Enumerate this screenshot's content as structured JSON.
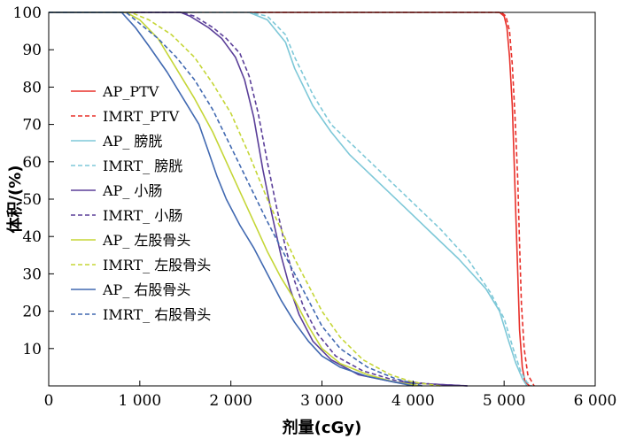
{
  "chart_data": {
    "type": "line",
    "title": "",
    "xlabel": "剂量(cGy)",
    "ylabel": "体积/(%)",
    "xlim": [
      0,
      6000
    ],
    "ylim": [
      0,
      100
    ],
    "x_ticks": [
      0,
      1000,
      2000,
      3000,
      4000,
      5000,
      6000
    ],
    "x_tick_labels": [
      "0",
      "1 000",
      "2 000",
      "3 000",
      "4 000",
      "5 000",
      "6 000"
    ],
    "y_ticks": [
      10,
      20,
      30,
      40,
      50,
      60,
      70,
      80,
      90,
      100
    ],
    "y_tick_labels": [
      "10",
      "20",
      "30",
      "40",
      "50",
      "60",
      "70",
      "80",
      "90",
      "100"
    ],
    "grid": false,
    "legend_position": "left",
    "series": [
      {
        "name": "AP_PTV",
        "color": "#e8302a",
        "dash": "solid",
        "points": [
          [
            0,
            100
          ],
          [
            4950,
            100
          ],
          [
            5000,
            99
          ],
          [
            5030,
            96
          ],
          [
            5060,
            88
          ],
          [
            5090,
            75
          ],
          [
            5110,
            60
          ],
          [
            5130,
            45
          ],
          [
            5150,
            30
          ],
          [
            5170,
            15
          ],
          [
            5200,
            5
          ],
          [
            5230,
            1
          ],
          [
            5280,
            0
          ]
        ]
      },
      {
        "name": "IMRT_PTV",
        "color": "#e8302a",
        "dash": "dashed",
        "points": [
          [
            0,
            100
          ],
          [
            4970,
            100
          ],
          [
            5020,
            99
          ],
          [
            5060,
            95
          ],
          [
            5090,
            86
          ],
          [
            5120,
            72
          ],
          [
            5150,
            55
          ],
          [
            5170,
            38
          ],
          [
            5190,
            22
          ],
          [
            5220,
            10
          ],
          [
            5260,
            3
          ],
          [
            5330,
            0
          ]
        ]
      },
      {
        "name": "AP_ 膀胱",
        "color": "#7ec8d8",
        "dash": "solid",
        "points": [
          [
            0,
            100
          ],
          [
            2200,
            100
          ],
          [
            2400,
            98
          ],
          [
            2600,
            92
          ],
          [
            2700,
            85
          ],
          [
            2900,
            75
          ],
          [
            3100,
            68
          ],
          [
            3300,
            62
          ],
          [
            3600,
            55
          ],
          [
            3900,
            48
          ],
          [
            4200,
            41
          ],
          [
            4500,
            34
          ],
          [
            4800,
            26
          ],
          [
            4950,
            20
          ],
          [
            5050,
            12
          ],
          [
            5130,
            6
          ],
          [
            5200,
            2
          ],
          [
            5250,
            0
          ]
        ]
      },
      {
        "name": "IMRT_ 膀胱",
        "color": "#7ec8d8",
        "dash": "dashed",
        "points": [
          [
            0,
            100
          ],
          [
            2200,
            100
          ],
          [
            2400,
            99
          ],
          [
            2600,
            94
          ],
          [
            2700,
            88
          ],
          [
            2900,
            78
          ],
          [
            3100,
            70
          ],
          [
            3400,
            63
          ],
          [
            3700,
            56
          ],
          [
            4000,
            49
          ],
          [
            4300,
            42
          ],
          [
            4600,
            34
          ],
          [
            4850,
            25
          ],
          [
            5000,
            18
          ],
          [
            5100,
            10
          ],
          [
            5180,
            4
          ],
          [
            5250,
            1
          ],
          [
            5300,
            0
          ]
        ]
      },
      {
        "name": "AP_ 小肠",
        "color": "#5b3f99",
        "dash": "solid",
        "points": [
          [
            0,
            100
          ],
          [
            1450,
            100
          ],
          [
            1550,
            99
          ],
          [
            1750,
            96
          ],
          [
            1900,
            93
          ],
          [
            2050,
            88
          ],
          [
            2150,
            82
          ],
          [
            2250,
            72
          ],
          [
            2350,
            58
          ],
          [
            2450,
            46
          ],
          [
            2550,
            35
          ],
          [
            2650,
            26
          ],
          [
            2750,
            19
          ],
          [
            2900,
            12
          ],
          [
            3100,
            7
          ],
          [
            3400,
            3
          ],
          [
            3800,
            1
          ],
          [
            4200,
            0.5
          ],
          [
            4600,
            0
          ]
        ]
      },
      {
        "name": "IMRT_ 小肠",
        "color": "#5b3f99",
        "dash": "dashed",
        "points": [
          [
            0,
            100
          ],
          [
            1450,
            100
          ],
          [
            1600,
            99
          ],
          [
            1800,
            96
          ],
          [
            1950,
            93
          ],
          [
            2100,
            89
          ],
          [
            2200,
            83
          ],
          [
            2300,
            73
          ],
          [
            2400,
            60
          ],
          [
            2500,
            48
          ],
          [
            2600,
            37
          ],
          [
            2700,
            28
          ],
          [
            2800,
            21
          ],
          [
            2950,
            14
          ],
          [
            3150,
            8
          ],
          [
            3450,
            4
          ],
          [
            3800,
            1.5
          ],
          [
            4200,
            0.5
          ],
          [
            4600,
            0
          ]
        ]
      },
      {
        "name": "AP_ 左股骨头",
        "color": "#c5d637",
        "dash": "solid",
        "points": [
          [
            0,
            100
          ],
          [
            850,
            100
          ],
          [
            1000,
            98
          ],
          [
            1200,
            93
          ],
          [
            1400,
            85
          ],
          [
            1600,
            77
          ],
          [
            1800,
            68
          ],
          [
            1950,
            60
          ],
          [
            2100,
            52
          ],
          [
            2250,
            44
          ],
          [
            2400,
            36
          ],
          [
            2550,
            29
          ],
          [
            2700,
            23
          ],
          [
            2850,
            16
          ],
          [
            3000,
            10
          ],
          [
            3200,
            6
          ],
          [
            3500,
            3
          ],
          [
            3800,
            1
          ],
          [
            4100,
            0
          ]
        ]
      },
      {
        "name": "IMRT_ 左股骨头",
        "color": "#c5d637",
        "dash": "dashed",
        "points": [
          [
            0,
            100
          ],
          [
            900,
            100
          ],
          [
            1100,
            98
          ],
          [
            1350,
            94
          ],
          [
            1600,
            88
          ],
          [
            1800,
            81
          ],
          [
            2000,
            73
          ],
          [
            2200,
            62
          ],
          [
            2400,
            50
          ],
          [
            2550,
            42
          ],
          [
            2700,
            34
          ],
          [
            2850,
            27
          ],
          [
            3000,
            20
          ],
          [
            3200,
            13
          ],
          [
            3450,
            7
          ],
          [
            3750,
            3
          ],
          [
            4000,
            1
          ],
          [
            4300,
            0
          ]
        ]
      },
      {
        "name": "AP_ 右股骨头",
        "color": "#4169b1",
        "dash": "solid",
        "points": [
          [
            0,
            100
          ],
          [
            800,
            100
          ],
          [
            950,
            96
          ],
          [
            1100,
            91
          ],
          [
            1300,
            84
          ],
          [
            1500,
            76
          ],
          [
            1650,
            70
          ],
          [
            1750,
            63
          ],
          [
            1850,
            56
          ],
          [
            1950,
            50
          ],
          [
            2100,
            43
          ],
          [
            2250,
            37
          ],
          [
            2400,
            30
          ],
          [
            2550,
            23
          ],
          [
            2700,
            17
          ],
          [
            2850,
            12
          ],
          [
            3000,
            8
          ],
          [
            3200,
            5
          ],
          [
            3500,
            2.5
          ],
          [
            3800,
            1
          ],
          [
            4000,
            0
          ]
        ]
      },
      {
        "name": "IMRT_ 右股骨头",
        "color": "#4169b1",
        "dash": "dashed",
        "points": [
          [
            0,
            100
          ],
          [
            850,
            100
          ],
          [
            1000,
            97
          ],
          [
            1200,
            93
          ],
          [
            1400,
            88
          ],
          [
            1600,
            82
          ],
          [
            1800,
            74
          ],
          [
            2000,
            64
          ],
          [
            2200,
            54
          ],
          [
            2400,
            44
          ],
          [
            2550,
            37
          ],
          [
            2700,
            30
          ],
          [
            2850,
            23
          ],
          [
            3000,
            16
          ],
          [
            3200,
            10
          ],
          [
            3500,
            5
          ],
          [
            3800,
            2
          ],
          [
            4100,
            0
          ]
        ]
      }
    ]
  }
}
